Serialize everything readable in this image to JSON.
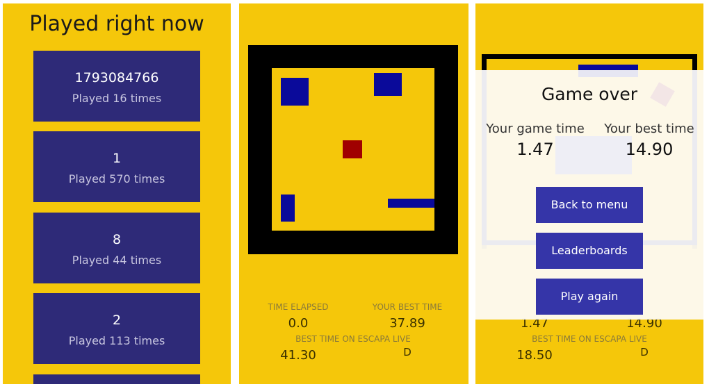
{
  "played": {
    "title": "Played right now",
    "items": [
      {
        "name": "1793084766",
        "count": "Played 16 times"
      },
      {
        "name": "1",
        "count": "Played 570 times"
      },
      {
        "name": "8",
        "count": "Played 44 times"
      },
      {
        "name": "2",
        "count": "Played 113 times"
      }
    ]
  },
  "game": {
    "time_elapsed_label": "TIME ELAPSED",
    "time_elapsed": "0.0",
    "best_label": "YOUR BEST TIME",
    "best": "37.89",
    "live_label": "BEST TIME ON ESCAPA LIVE",
    "live": "41.30",
    "live_rank": "D"
  },
  "gameover": {
    "title": "Game over",
    "game_time_label": "Your game time",
    "game_time": "1.47",
    "best_label": "Your best time",
    "best": "14.90",
    "buttons": {
      "back": "Back to menu",
      "leaderboards": "Leaderboards",
      "again": "Play again"
    },
    "under": {
      "time": "1.47",
      "best": "14.90",
      "live_label": "BEST TIME ON ESCAPA LIVE",
      "live": "18.50",
      "live_rank": "D"
    }
  },
  "colors": {
    "background": "#f5c70a",
    "card": "#2e2a78",
    "button": "#3535a8",
    "block": "#0a0a9a",
    "player": "#a00000"
  }
}
